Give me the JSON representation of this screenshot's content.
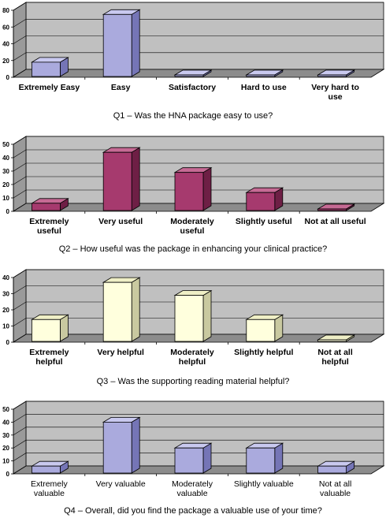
{
  "chart_data": [
    {
      "type": "bar",
      "title": "Q1 – Was the HNA package easy to use?",
      "categories": [
        [
          "Extremely Easy"
        ],
        [
          "Easy"
        ],
        [
          "Satisfactory"
        ],
        [
          "Hard to use"
        ],
        [
          "Very hard to",
          "use"
        ]
      ],
      "values": [
        18,
        75,
        0,
        0,
        0
      ],
      "ylim": [
        0,
        80
      ],
      "yticks": [
        0,
        20,
        40,
        60,
        80
      ],
      "label_weight": "bold",
      "grid": true,
      "colors": {
        "front": "#aaaadd",
        "side": "#7575b6",
        "top": "#c9c9ef"
      }
    },
    {
      "type": "bar",
      "title": "Q2 – How useful was the package in enhancing your clinical practice?",
      "categories": [
        [
          "Extremely",
          "useful"
        ],
        [
          "Very useful"
        ],
        [
          "Moderately",
          "useful"
        ],
        [
          "Slightly useful"
        ],
        [
          "Not at all useful"
        ]
      ],
      "values": [
        6,
        44,
        29,
        14,
        0
      ],
      "ylim": [
        0,
        50
      ],
      "yticks": [
        0,
        10,
        20,
        30,
        40,
        50
      ],
      "label_weight": "bold",
      "grid": true,
      "colors": {
        "front": "#a63a6e",
        "side": "#6e1f45",
        "top": "#c66a94"
      }
    },
    {
      "type": "bar",
      "title": "Q3 – Was the supporting reading material helpful?",
      "categories": [
        [
          "Extremely",
          "helpful"
        ],
        [
          "Very helpful"
        ],
        [
          "Moderately",
          "helpful"
        ],
        [
          "Slightly helpful"
        ],
        [
          "Not at all",
          "helpful"
        ]
      ],
      "values": [
        14,
        37,
        29,
        14,
        0
      ],
      "ylim": [
        0,
        40
      ],
      "yticks": [
        0,
        10,
        20,
        30,
        40
      ],
      "label_weight": "bold",
      "grid": true,
      "colors": {
        "front": "#ffffdd",
        "side": "#c9c9a0",
        "top": "#efefc6"
      }
    },
    {
      "type": "bar",
      "title": "Q4 – Overall, did you find the package a valuable use of your time?",
      "categories": [
        [
          "Extremely",
          "valuable"
        ],
        [
          "Very valuable"
        ],
        [
          "Moderately",
          "valuable"
        ],
        [
          "Slightly valuable"
        ],
        [
          "Not at all",
          "valuable"
        ]
      ],
      "values": [
        6,
        40,
        20,
        20,
        6
      ],
      "ylim": [
        0,
        50
      ],
      "yticks": [
        0,
        10,
        20,
        30,
        40,
        50
      ],
      "label_weight": "normal",
      "grid": true,
      "colors": {
        "front": "#aaaadd",
        "side": "#7575b6",
        "top": "#c9c9ef"
      }
    }
  ]
}
